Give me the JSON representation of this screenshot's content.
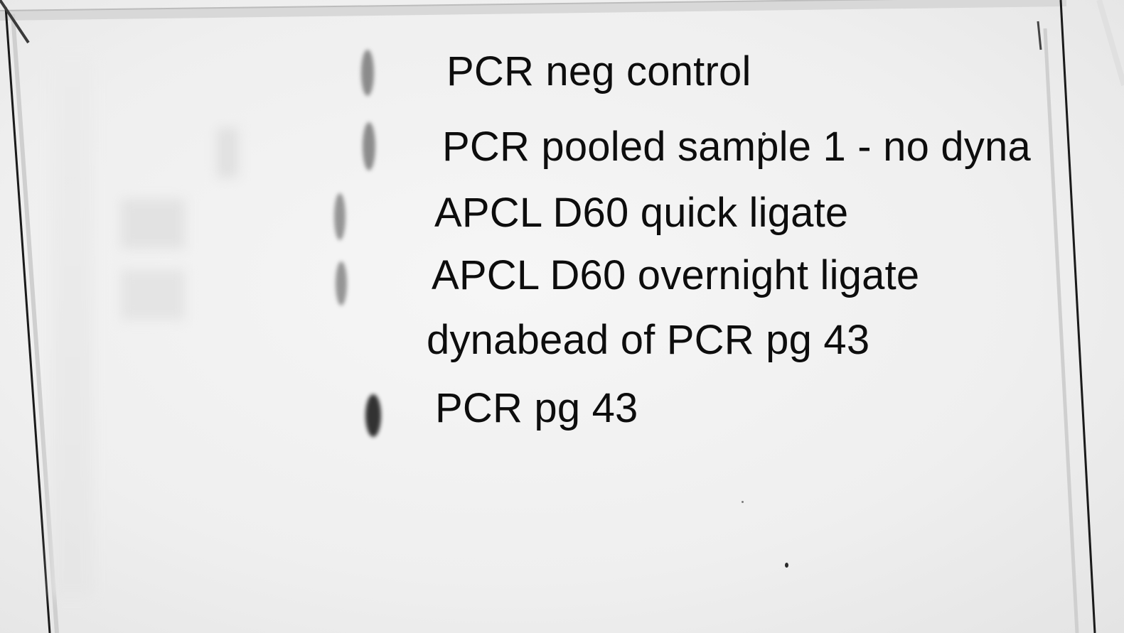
{
  "gel": {
    "lanes": [
      {
        "label": "PCR neg control"
      },
      {
        "label": "PCR pooled sample 1 - no dyna"
      },
      {
        "label": "APCL D60 quick ligate"
      },
      {
        "label": "APCL D60 overnight ligate"
      },
      {
        "label": "dynabead of PCR pg 43"
      },
      {
        "label": "PCR pg 43"
      }
    ]
  }
}
